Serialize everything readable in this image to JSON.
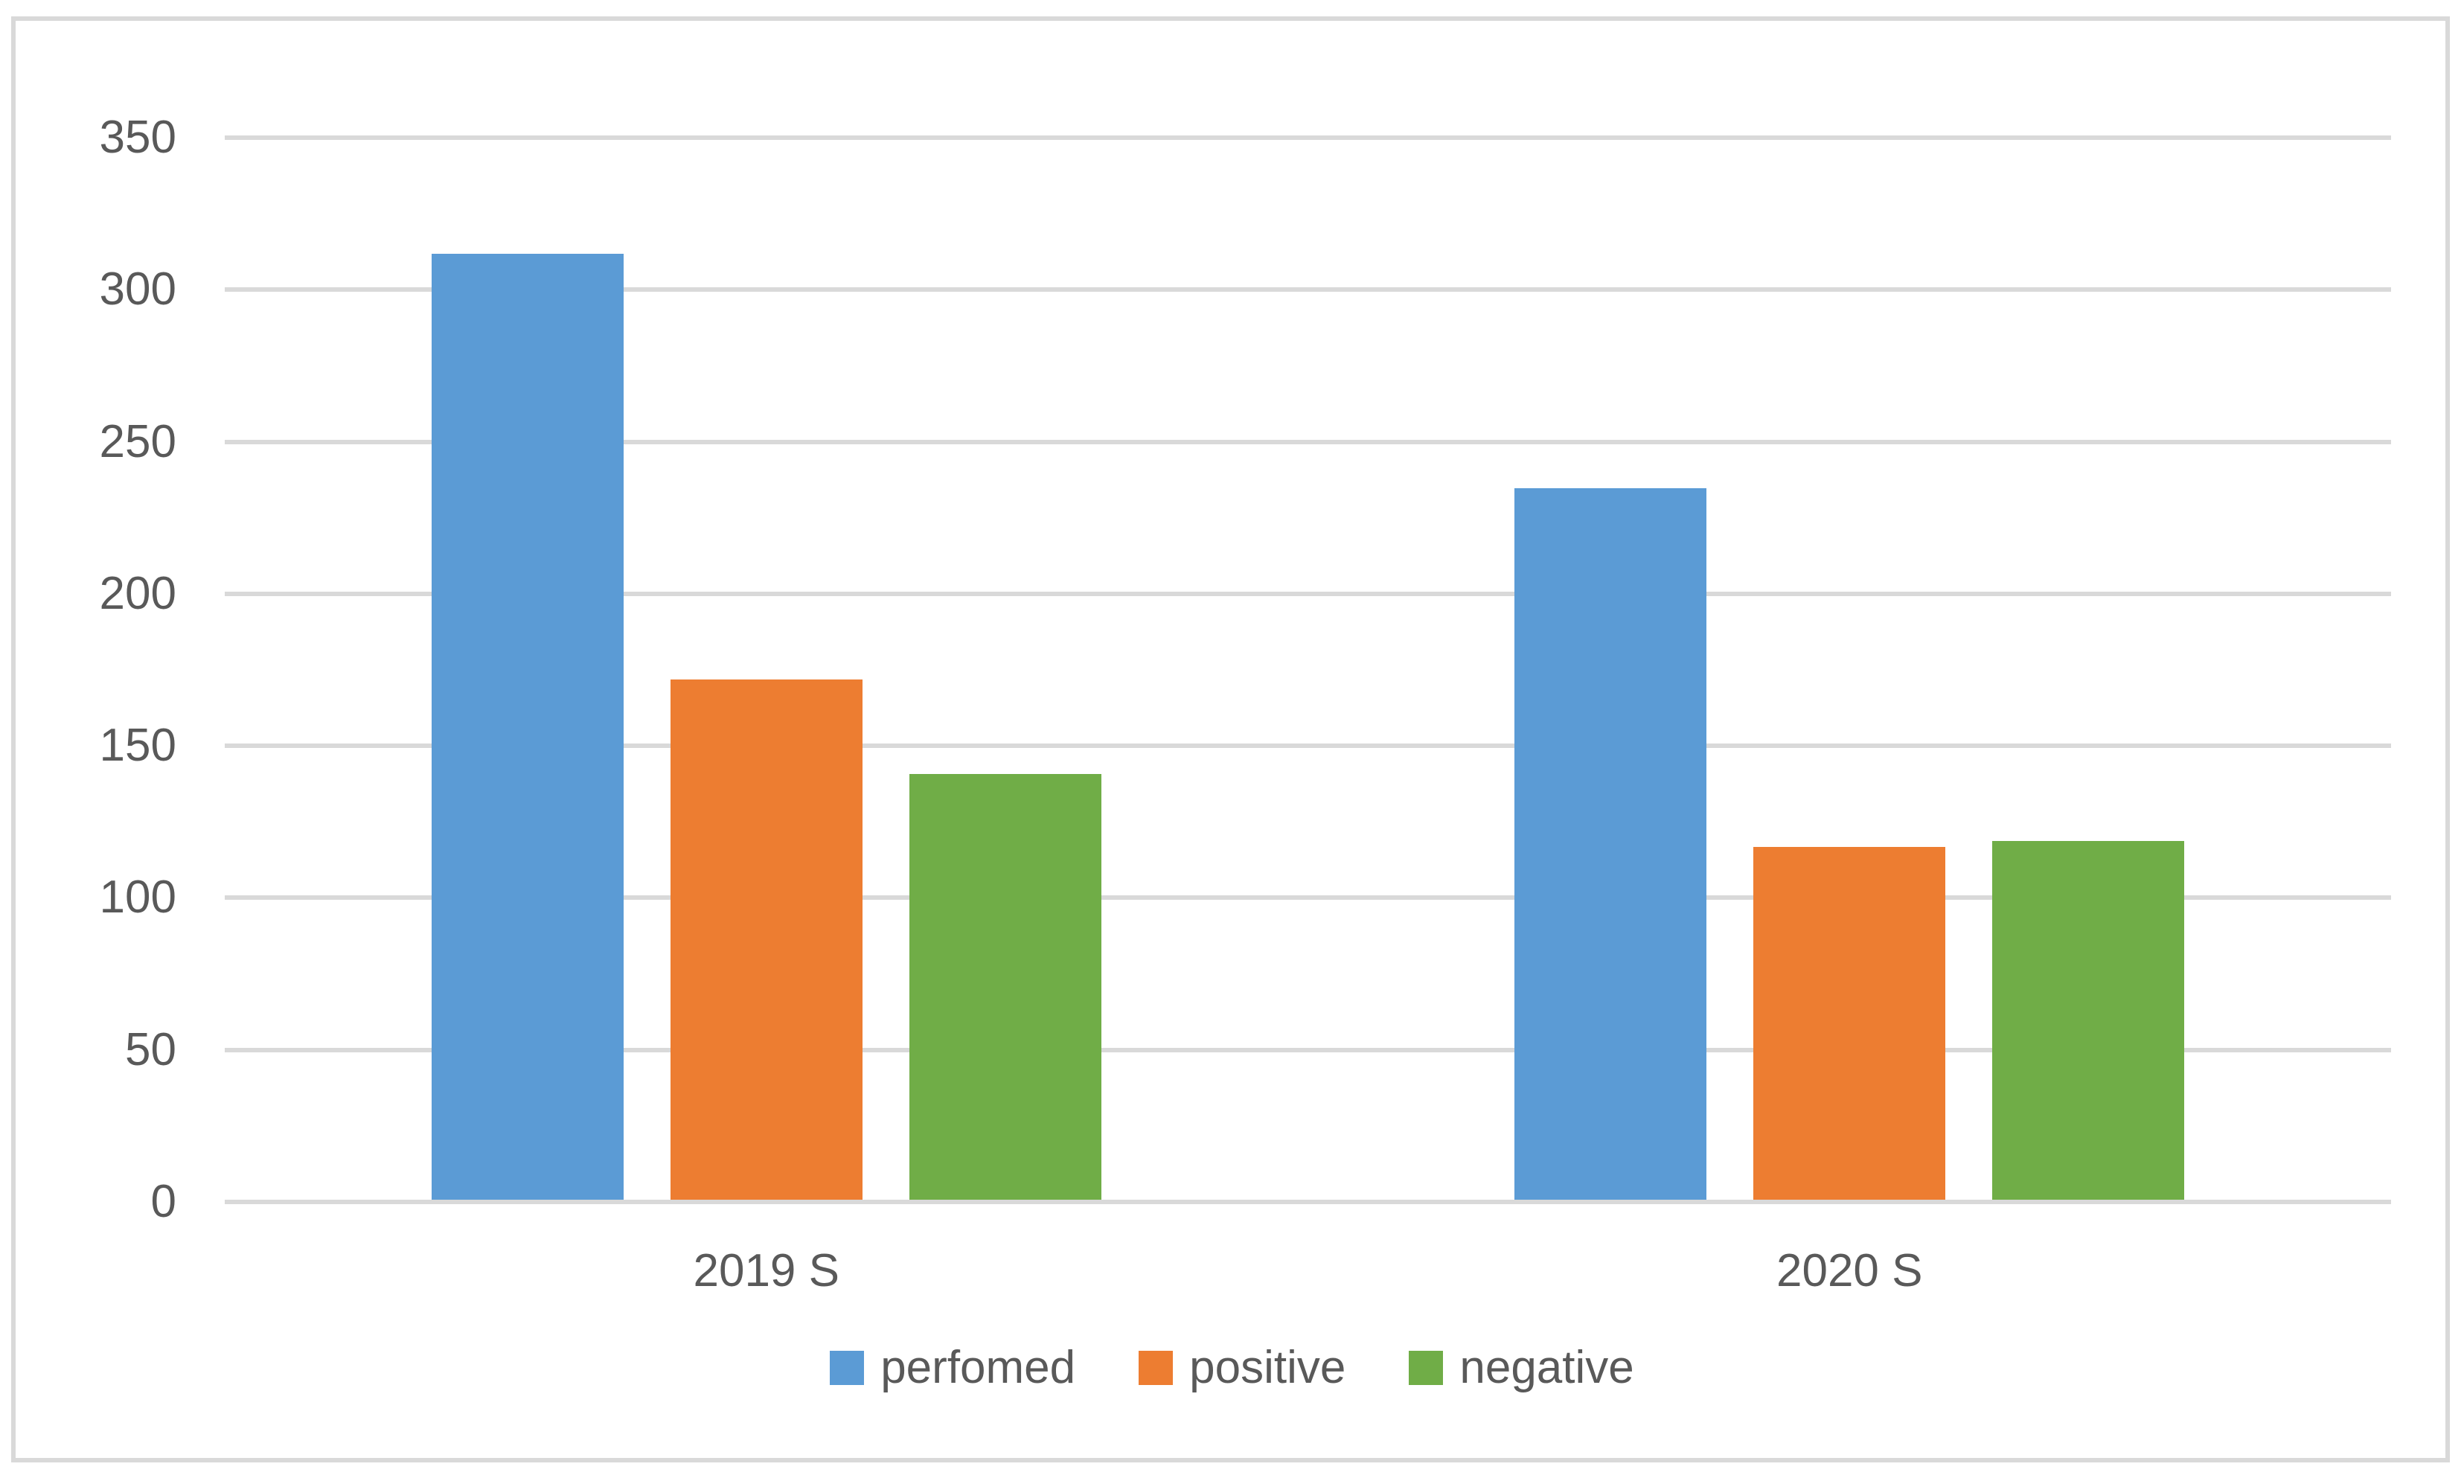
{
  "figure": {
    "background": "#FFFFFF",
    "border_color": "#D9D9D9"
  },
  "chart_data": {
    "type": "bar",
    "title": "",
    "xlabel": "",
    "ylabel": "",
    "categories": [
      "2019 S",
      "2020 S"
    ],
    "series": [
      {
        "name": "perfomed",
        "color": "#5B9BD5",
        "values": [
          311,
          234
        ]
      },
      {
        "name": "positive",
        "color": "#ED7D31",
        "values": [
          171,
          116
        ]
      },
      {
        "name": "negative",
        "color": "#70AD47",
        "values": [
          140,
          118
        ]
      }
    ],
    "ylim": [
      0,
      350
    ],
    "ytick_step": 50,
    "ytick_labels": [
      "0",
      "50",
      "100",
      "150",
      "200",
      "250",
      "300",
      "350"
    ],
    "grid": "horizontal",
    "gridline_color": "#D9D9D9",
    "axis_text_color": "#595959",
    "legend_position": "bottom"
  }
}
